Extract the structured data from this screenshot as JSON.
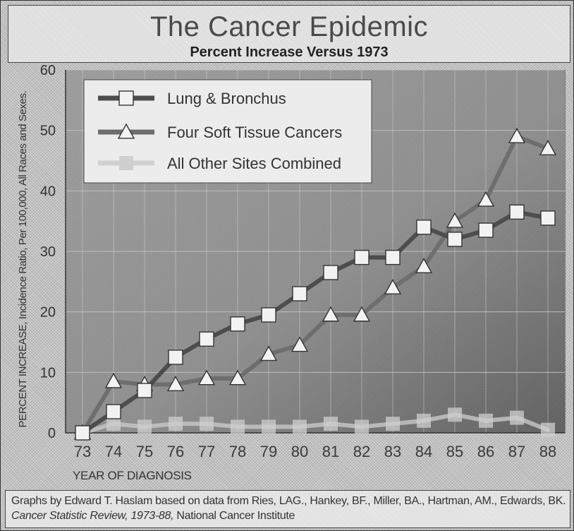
{
  "header": {
    "title": "The Cancer Epidemic",
    "subtitle": "Percent Increase Versus 1973"
  },
  "chart_data": {
    "type": "line",
    "title": "The Cancer Epidemic",
    "subtitle": "Percent Increase Versus 1973",
    "xlabel": "YEAR OF DIAGNOSIS",
    "ylabel": "PERCENT INCREASE, Incidence Ratio, Per 100,000, All Races and Sexes.",
    "categories": [
      "73",
      "74",
      "75",
      "76",
      "77",
      "78",
      "79",
      "80",
      "81",
      "82",
      "83",
      "84",
      "85",
      "86",
      "87",
      "88"
    ],
    "ylim": [
      0,
      60
    ],
    "yticks": [
      "0",
      "10",
      "20",
      "30",
      "40",
      "50",
      "60"
    ],
    "grid": true,
    "legend_position": "top-left",
    "series": [
      {
        "name": "Lung & Bronchus",
        "marker": "square",
        "color": "#4d4d4d",
        "values": [
          0,
          3.5,
          7,
          12.5,
          15.5,
          18,
          19.5,
          23,
          26.5,
          29,
          29,
          34,
          32,
          33.5,
          36.5,
          35.5
        ]
      },
      {
        "name": "Four Soft Tissue Cancers",
        "marker": "triangle",
        "color": "#6e6e6e",
        "values": [
          0,
          8.5,
          8,
          8,
          9,
          9,
          13,
          14.5,
          19.5,
          19.5,
          24,
          27.5,
          35,
          38.5,
          49,
          47
        ]
      },
      {
        "name": "All Other Sites Combined",
        "marker": "square",
        "color": "#c8c8c8",
        "values": [
          0,
          1.5,
          1,
          1.5,
          1.5,
          1,
          1,
          1,
          1.5,
          1,
          1.5,
          2,
          3,
          2,
          2.5,
          0.5
        ]
      }
    ]
  },
  "footer": {
    "line1": "Graphs by Edward T. Haslam based on data from Ries, LAG., Hankey, BF., Miller, BA., Hartman, AM., Edwards, BK.",
    "line2_italic": "Cancer Statistic Review, 1973-88,",
    "line2_rest": " National Cancer Institute"
  },
  "colors": {
    "plot_background": "#8a8a8a",
    "legend_background": "#ececec",
    "grid": "#bdbdbd"
  }
}
